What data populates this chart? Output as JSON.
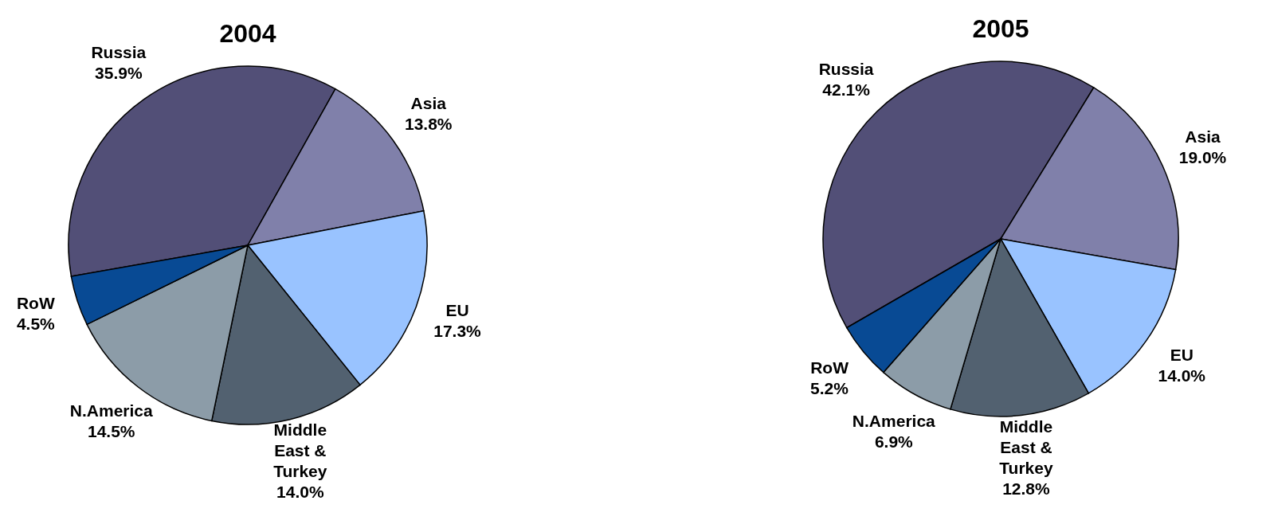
{
  "chart_data": [
    {
      "type": "pie",
      "title": "2004",
      "categories": [
        "Russia",
        "Asia",
        "EU",
        "Middle East & Turkey",
        "N.America",
        "RoW"
      ],
      "values": [
        35.9,
        13.8,
        17.3,
        14.0,
        14.5,
        4.5
      ],
      "value_labels": [
        "35.9%",
        "13.8%",
        "17.3%",
        "14.0%",
        "14.5%",
        "4.5%"
      ],
      "colors": [
        "#524f77",
        "#8080aa",
        "#99c3ff",
        "#526170",
        "#8c9ca8",
        "#084a94"
      ]
    },
    {
      "type": "pie",
      "title": "2005",
      "categories": [
        "Russia",
        "Asia",
        "EU",
        "Middle East & Turkey",
        "N.America",
        "RoW"
      ],
      "values": [
        42.1,
        19.0,
        14.0,
        12.8,
        6.9,
        5.2
      ],
      "value_labels": [
        "42.1%",
        "19.0%",
        "14.0%",
        "12.8%",
        "6.9%",
        "5.2%"
      ],
      "colors": [
        "#524f77",
        "#8080aa",
        "#99c3ff",
        "#526170",
        "#8c9ca8",
        "#084a94"
      ]
    }
  ]
}
